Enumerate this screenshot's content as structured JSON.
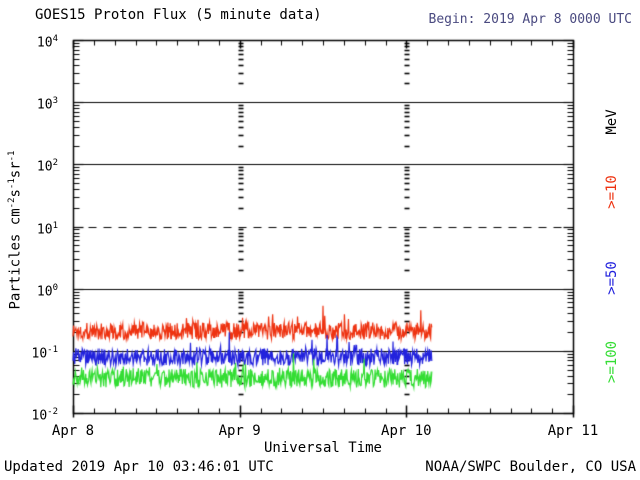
{
  "header": {
    "title": "GOES15 Proton Flux (5 minute data)",
    "begin_label": "Begin: 2019 Apr 8 0000 UTC",
    "begin_color": "#4a4a80"
  },
  "footer": {
    "updated": "Updated 2019 Apr 10 03:46:01 UTC",
    "credit": "NOAA/SWPC Boulder, CO USA"
  },
  "chart_data": {
    "type": "line",
    "title": "GOES15 Proton Flux (5 minute data)",
    "xlabel": "Universal Time",
    "ylabel": "Particles cm-2 s-1 sr-1",
    "ylabel_parts": {
      "p1": "Particles cm",
      "s1": "-2",
      "p2": "s",
      "s2": "-1",
      "p3": "sr",
      "s3": "-1"
    },
    "unit_label": "MeV",
    "y_scale": "log10",
    "ylim_exponents": [
      -2,
      4
    ],
    "y_tick_exponents": [
      4,
      3,
      2,
      1,
      0,
      -1,
      -2
    ],
    "x_categories": [
      "Apr 8",
      "Apr 9",
      "Apr 10",
      "Apr 11"
    ],
    "x_span_days": 3,
    "x_minor_tick_hours": 3,
    "grid": {
      "solid_hline_exponents": [
        3,
        2,
        0,
        -1
      ],
      "dashed_hline_exponents": [
        1
      ],
      "day_boundary_dotted_columns_days": [
        1,
        2
      ]
    },
    "legend_position": "right-outside",
    "axis_color": "#000000",
    "data_start": "2019 Apr 8 0000 UTC",
    "data_end": "2019 Apr 10 03:46 UTC",
    "data_end_day_fraction": 2.157,
    "samples_per_hour": 12,
    "noise_seed": 1337,
    "series": [
      {
        "name": ">=10",
        "unit": "MeV",
        "color": "#ee3311",
        "approx_mean_flux": 0.21,
        "typical_range_flux": [
          0.13,
          0.38
        ],
        "base_log10": -0.68,
        "jitter_log10": 0.14,
        "spike_prob": 0.05,
        "spike_log10": 0.32
      },
      {
        "name": ">=50",
        "unit": "MeV",
        "color": "#2222dd",
        "approx_mean_flux": 0.08,
        "typical_range_flux": [
          0.055,
          0.16
        ],
        "base_log10": -1.1,
        "jitter_log10": 0.14,
        "spike_prob": 0.04,
        "spike_log10": 0.3
      },
      {
        "name": ">=100",
        "unit": "MeV",
        "color": "#33dd33",
        "approx_mean_flux": 0.036,
        "typical_range_flux": [
          0.025,
          0.08
        ],
        "base_log10": -1.44,
        "jitter_log10": 0.15,
        "spike_prob": 0.05,
        "spike_log10": 0.3
      }
    ]
  }
}
